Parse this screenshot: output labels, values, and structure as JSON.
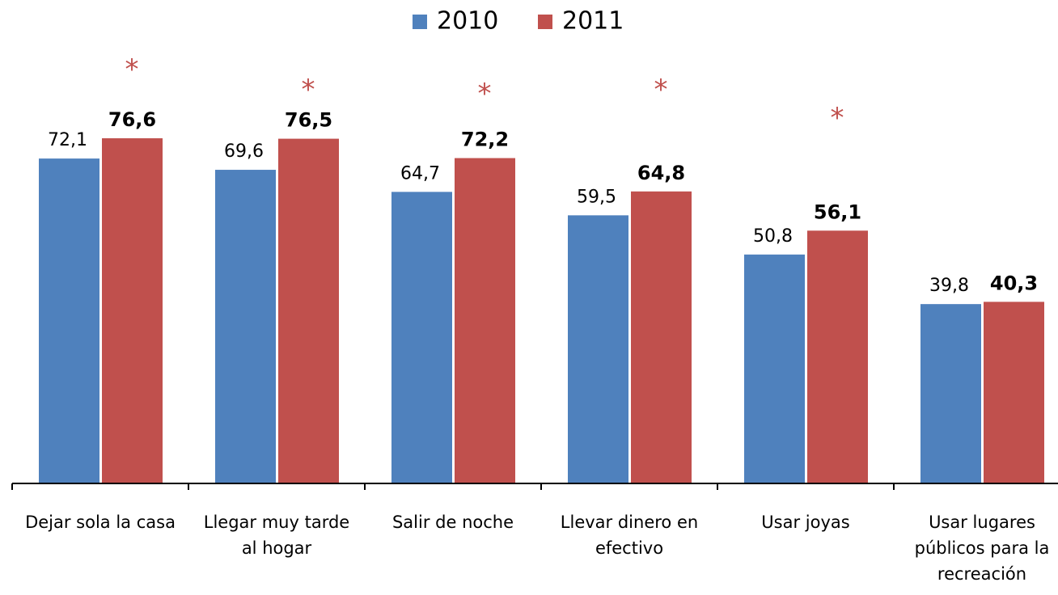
{
  "chart_data": {
    "type": "bar",
    "categories": [
      "Dejar sola la casa",
      "Llegar muy tarde al hogar",
      "Salir de noche",
      "Llevar dinero en efectivo",
      "Usar joyas",
      "Usar lugares públicos para la recreación"
    ],
    "series": [
      {
        "name": "2010",
        "color": "#4f81bd",
        "values": [
          72.1,
          69.6,
          64.7,
          59.5,
          50.8,
          39.8
        ],
        "value_labels": [
          "72,1",
          "69,6",
          "64,7",
          "59,5",
          "50,8",
          "39,8"
        ]
      },
      {
        "name": "2011",
        "color": "#c0504d",
        "values": [
          76.6,
          76.5,
          72.2,
          64.8,
          56.1,
          40.3
        ],
        "value_labels": [
          "76,6",
          "76,5",
          "72,2",
          "64,8",
          "56,1",
          "40,3"
        ]
      }
    ],
    "annotations": [
      "*",
      "*",
      "*",
      "*",
      "*",
      null
    ],
    "ylim": [
      0,
      100
    ],
    "legend": "top"
  }
}
